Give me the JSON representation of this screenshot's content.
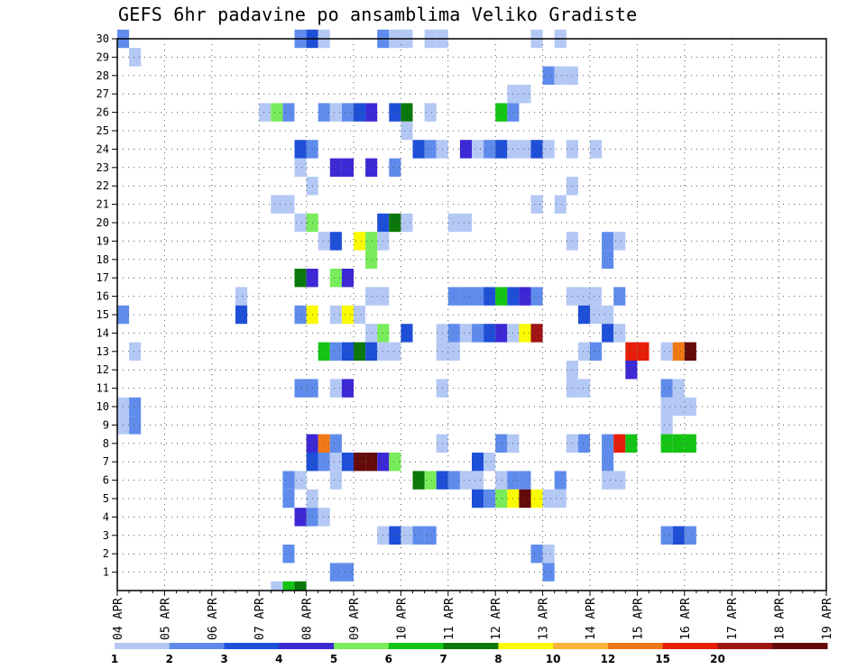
{
  "chart_data": {
    "type": "heatmap",
    "title": "GEFS 6hr padavine po ansamblima Veliko Gradiste",
    "y_ticks": [
      1,
      2,
      3,
      4,
      5,
      6,
      7,
      8,
      9,
      10,
      11,
      12,
      13,
      14,
      15,
      16,
      17,
      18,
      19,
      20,
      21,
      22,
      23,
      24,
      25,
      26,
      27,
      28,
      29,
      30
    ],
    "ylim": [
      0,
      30
    ],
    "x_ticks": [
      "04 APR",
      "05 APR",
      "06 APR",
      "07 APR",
      "08 APR",
      "09 APR",
      "10 APR",
      "11 APR",
      "12 APR",
      "13 APR",
      "14 APR",
      "15 APR",
      "16 APR",
      "17 APR",
      "18 APR",
      "19 APR"
    ],
    "steps_per_day": 4,
    "n_steps": 60,
    "grid": "dotted",
    "colorbar": {
      "position": "bottom",
      "labels": [
        "1",
        "2",
        "3",
        "4",
        "5",
        "6",
        "7",
        "8",
        "10",
        "12",
        "15",
        "20"
      ],
      "colors": [
        "#b4c8f5",
        "#5f8cec",
        "#1e4fd8",
        "#3c28d4",
        "#78ec5a",
        "#14c414",
        "#0a780a",
        "#fafa00",
        "#fab43c",
        "#f07814",
        "#e61e0a",
        "#a01414",
        "#640a0a"
      ]
    },
    "cells": [
      {
        "m": 30,
        "s": [
          [
            0,
            2
          ],
          [
            15,
            2
          ],
          [
            16,
            3
          ],
          [
            17,
            1
          ],
          [
            22,
            2
          ],
          [
            23,
            1
          ],
          [
            24,
            1
          ],
          [
            26,
            1
          ],
          [
            27,
            1
          ],
          [
            35,
            1
          ],
          [
            37,
            1
          ]
        ]
      },
      {
        "m": 29,
        "s": [
          [
            1,
            1
          ]
        ]
      },
      {
        "m": 28,
        "s": [
          [
            36,
            2
          ],
          [
            37,
            1
          ],
          [
            38,
            1
          ]
        ]
      },
      {
        "m": 27,
        "s": [
          [
            33,
            1
          ],
          [
            34,
            1
          ]
        ]
      },
      {
        "m": 26,
        "s": [
          [
            12,
            1
          ],
          [
            13,
            5
          ],
          [
            14,
            2
          ],
          [
            17,
            2
          ],
          [
            18,
            1
          ],
          [
            19,
            2
          ],
          [
            20,
            3
          ],
          [
            21,
            4
          ],
          [
            23,
            3
          ],
          [
            24,
            7
          ],
          [
            26,
            1
          ],
          [
            32,
            6
          ],
          [
            33,
            2
          ]
        ]
      },
      {
        "m": 25,
        "s": [
          [
            24,
            1
          ]
        ]
      },
      {
        "m": 24,
        "s": [
          [
            15,
            3
          ],
          [
            16,
            2
          ],
          [
            25,
            3
          ],
          [
            26,
            2
          ],
          [
            27,
            1
          ],
          [
            29,
            4
          ],
          [
            30,
            1
          ],
          [
            31,
            2
          ],
          [
            32,
            3
          ],
          [
            33,
            1
          ],
          [
            34,
            1
          ],
          [
            35,
            3
          ],
          [
            36,
            1
          ],
          [
            38,
            1
          ],
          [
            40,
            1
          ]
        ]
      },
      {
        "m": 23,
        "s": [
          [
            15,
            1
          ],
          [
            18,
            4
          ],
          [
            19,
            4
          ],
          [
            21,
            4
          ],
          [
            23,
            2
          ]
        ]
      },
      {
        "m": 22,
        "s": [
          [
            16,
            1
          ],
          [
            38,
            1
          ]
        ]
      },
      {
        "m": 21,
        "s": [
          [
            13,
            1
          ],
          [
            14,
            1
          ],
          [
            35,
            1
          ],
          [
            37,
            1
          ]
        ]
      },
      {
        "m": 20,
        "s": [
          [
            15,
            1
          ],
          [
            16,
            5
          ],
          [
            22,
            3
          ],
          [
            23,
            7
          ],
          [
            24,
            1
          ],
          [
            28,
            1
          ],
          [
            29,
            1
          ]
        ]
      },
      {
        "m": 19,
        "s": [
          [
            17,
            1
          ],
          [
            18,
            3
          ],
          [
            20,
            8
          ],
          [
            21,
            5
          ],
          [
            22,
            1
          ],
          [
            38,
            1
          ],
          [
            41,
            2
          ],
          [
            42,
            1
          ]
        ]
      },
      {
        "m": 18,
        "s": [
          [
            21,
            5
          ],
          [
            41,
            2
          ]
        ]
      },
      {
        "m": 17,
        "s": [
          [
            15,
            7
          ],
          [
            16,
            4
          ],
          [
            18,
            5
          ],
          [
            19,
            4
          ]
        ]
      },
      {
        "m": 16,
        "s": [
          [
            10,
            1
          ],
          [
            21,
            1
          ],
          [
            22,
            1
          ],
          [
            28,
            2
          ],
          [
            29,
            2
          ],
          [
            30,
            2
          ],
          [
            31,
            3
          ],
          [
            32,
            6
          ],
          [
            33,
            3
          ],
          [
            34,
            4
          ],
          [
            35,
            2
          ],
          [
            38,
            1
          ],
          [
            39,
            1
          ],
          [
            40,
            1
          ],
          [
            42,
            2
          ]
        ]
      },
      {
        "m": 15,
        "s": [
          [
            0,
            2
          ],
          [
            10,
            3
          ],
          [
            15,
            2
          ],
          [
            16,
            8
          ],
          [
            18,
            1
          ],
          [
            19,
            8
          ],
          [
            20,
            1
          ],
          [
            39,
            3
          ],
          [
            40,
            1
          ],
          [
            41,
            1
          ]
        ]
      },
      {
        "m": 14,
        "s": [
          [
            21,
            1
          ],
          [
            22,
            5
          ],
          [
            24,
            3
          ],
          [
            27,
            1
          ],
          [
            28,
            2
          ],
          [
            29,
            1
          ],
          [
            30,
            2
          ],
          [
            31,
            3
          ],
          [
            32,
            4
          ],
          [
            33,
            1
          ],
          [
            34,
            8
          ],
          [
            35,
            12
          ],
          [
            41,
            3
          ],
          [
            42,
            1
          ]
        ]
      },
      {
        "m": 13,
        "s": [
          [
            1,
            1
          ],
          [
            17,
            6
          ],
          [
            18,
            2
          ],
          [
            19,
            3
          ],
          [
            20,
            7
          ],
          [
            21,
            3
          ],
          [
            22,
            1
          ],
          [
            23,
            1
          ],
          [
            27,
            1
          ],
          [
            28,
            1
          ],
          [
            39,
            1
          ],
          [
            40,
            2
          ],
          [
            43,
            11
          ],
          [
            44,
            11
          ],
          [
            46,
            1
          ],
          [
            47,
            10
          ],
          [
            48,
            13
          ]
        ]
      },
      {
        "m": 12,
        "s": [
          [
            38,
            1
          ],
          [
            43,
            4
          ]
        ]
      },
      {
        "m": 11,
        "s": [
          [
            15,
            2
          ],
          [
            16,
            2
          ],
          [
            18,
            1
          ],
          [
            19,
            4
          ],
          [
            27,
            1
          ],
          [
            38,
            1
          ],
          [
            39,
            1
          ],
          [
            46,
            2
          ],
          [
            47,
            1
          ]
        ]
      },
      {
        "m": 10,
        "s": [
          [
            46,
            1
          ],
          [
            47,
            1
          ],
          [
            48,
            1
          ],
          [
            0,
            1
          ],
          [
            1,
            2
          ]
        ]
      },
      {
        "m": 9,
        "s": [
          [
            0,
            1
          ],
          [
            1,
            2
          ],
          [
            46,
            1
          ]
        ]
      },
      {
        "m": 8,
        "s": [
          [
            16,
            4
          ],
          [
            17,
            10
          ],
          [
            18,
            2
          ],
          [
            27,
            1
          ],
          [
            32,
            2
          ],
          [
            33,
            1
          ],
          [
            38,
            1
          ],
          [
            39,
            2
          ],
          [
            41,
            2
          ],
          [
            42,
            11
          ],
          [
            43,
            6
          ],
          [
            46,
            6
          ],
          [
            47,
            6
          ],
          [
            48,
            6
          ]
        ]
      },
      {
        "m": 7,
        "s": [
          [
            16,
            3
          ],
          [
            17,
            2
          ],
          [
            18,
            1
          ],
          [
            19,
            3
          ],
          [
            20,
            13
          ],
          [
            21,
            13
          ],
          [
            22,
            4
          ],
          [
            23,
            5
          ],
          [
            30,
            3
          ],
          [
            31,
            1
          ],
          [
            41,
            2
          ]
        ]
      },
      {
        "m": 6,
        "s": [
          [
            14,
            2
          ],
          [
            15,
            1
          ],
          [
            18,
            1
          ],
          [
            25,
            7
          ],
          [
            26,
            5
          ],
          [
            27,
            3
          ],
          [
            28,
            2
          ],
          [
            29,
            1
          ],
          [
            30,
            1
          ],
          [
            32,
            1
          ],
          [
            33,
            2
          ],
          [
            34,
            2
          ],
          [
            37,
            2
          ],
          [
            41,
            1
          ],
          [
            42,
            1
          ]
        ]
      },
      {
        "m": 5,
        "s": [
          [
            14,
            2
          ],
          [
            16,
            1
          ],
          [
            30,
            3
          ],
          [
            31,
            2
          ],
          [
            32,
            5
          ],
          [
            33,
            8
          ],
          [
            34,
            13
          ],
          [
            35,
            8
          ],
          [
            36,
            1
          ],
          [
            37,
            1
          ]
        ]
      },
      {
        "m": 4,
        "s": [
          [
            15,
            4
          ],
          [
            16,
            2
          ],
          [
            17,
            1
          ]
        ]
      },
      {
        "m": 3,
        "s": [
          [
            22,
            1
          ],
          [
            23,
            3
          ],
          [
            24,
            1
          ],
          [
            25,
            2
          ],
          [
            26,
            2
          ],
          [
            46,
            2
          ],
          [
            47,
            3
          ],
          [
            48,
            2
          ]
        ]
      },
      {
        "m": 2,
        "s": [
          [
            14,
            2
          ],
          [
            35,
            2
          ],
          [
            36,
            1
          ]
        ]
      },
      {
        "m": 1,
        "s": [
          [
            18,
            2
          ],
          [
            19,
            2
          ],
          [
            36,
            2
          ]
        ]
      },
      {
        "m": 0,
        "s": [
          [
            13,
            1
          ],
          [
            14,
            6
          ],
          [
            15,
            7
          ]
        ]
      }
    ]
  }
}
